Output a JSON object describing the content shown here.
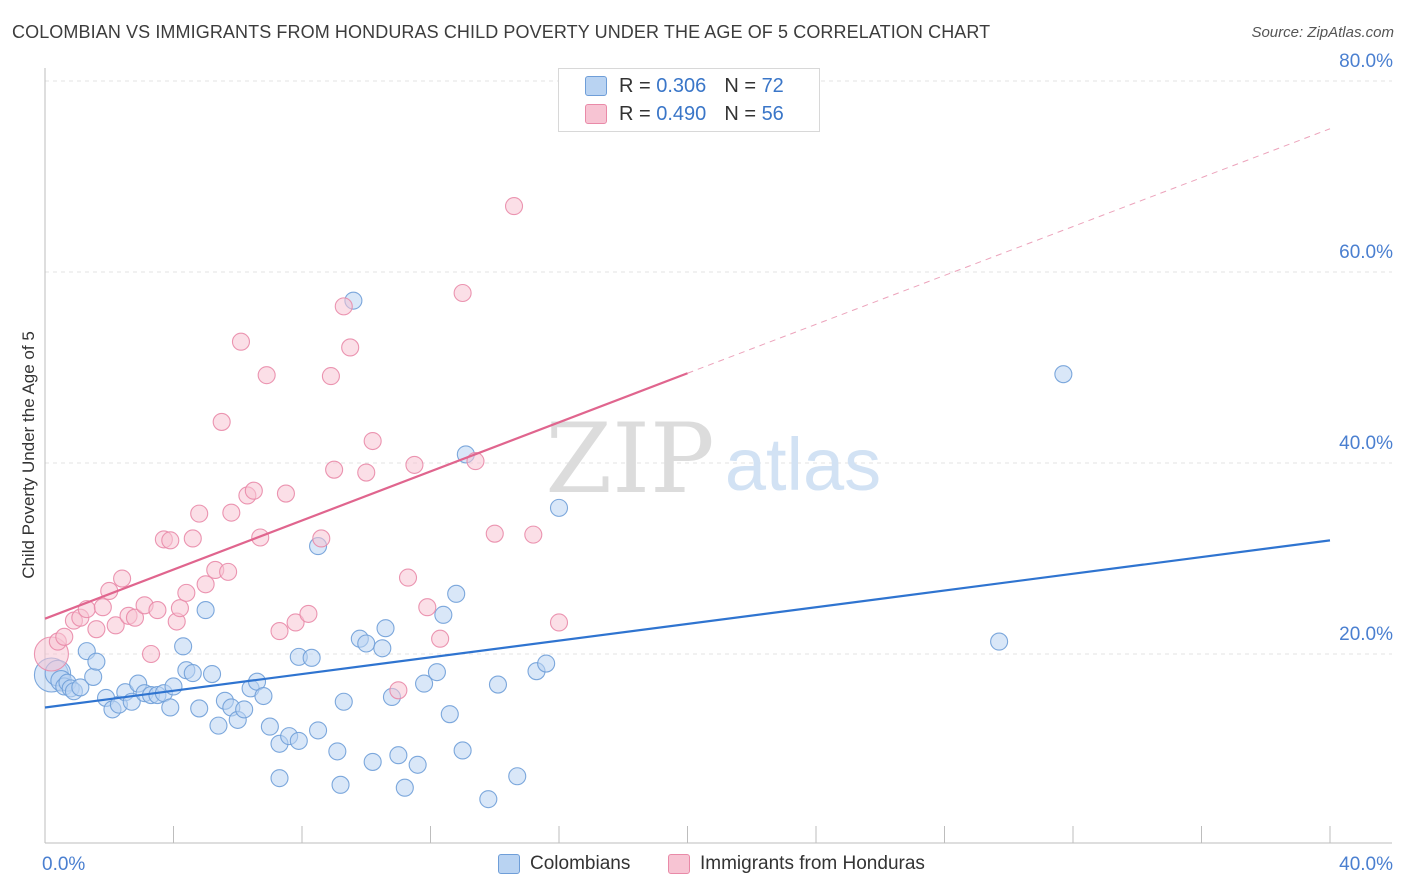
{
  "header": {
    "title": "COLOMBIAN VS IMMIGRANTS FROM HONDURAS CHILD POVERTY UNDER THE AGE OF 5 CORRELATION CHART",
    "source": "Source: ZipAtlas.com"
  },
  "watermark": {
    "zip": "ZIP",
    "atlas": "atlas"
  },
  "legend": {
    "r_label": "R =",
    "n_label": "N =",
    "series": [
      {
        "r": "0.306",
        "n": "72"
      },
      {
        "r": "0.490",
        "n": "56"
      }
    ]
  },
  "colors": {
    "colombians_fill": "#b9d3f2",
    "colombians_stroke": "#6f9ed8",
    "colombians_line": "#2f74d0",
    "honduras_fill": "#f7c4d3",
    "honduras_stroke": "#e98aa8",
    "honduras_line": "#e0658e",
    "axis_text": "#4a7fd0",
    "grid": "#e3e3e3"
  },
  "chart_data": {
    "type": "scatter",
    "title": "COLOMBIAN VS IMMIGRANTS FROM HONDURAS CHILD POVERTY UNDER THE AGE OF 5 CORRELATION CHART",
    "xlabel": "",
    "ylabel": "Child Poverty Under the Age of 5",
    "xlim": [
      0,
      40
    ],
    "ylim": [
      0,
      82
    ],
    "x_tick_labels": [
      {
        "value": 0,
        "label": "0.0%"
      },
      {
        "value": 40,
        "label": "40.0%"
      }
    ],
    "y_tick_labels": [
      {
        "value": 20,
        "label": "20.0%"
      },
      {
        "value": 40,
        "label": "40.0%"
      },
      {
        "value": 60,
        "label": "60.0%"
      },
      {
        "value": 80,
        "label": "80.0%"
      }
    ],
    "x_minor_ticks": [
      4,
      8,
      12,
      16,
      20,
      24,
      28,
      32,
      36,
      40
    ],
    "grid": true,
    "legend_position": "top-center",
    "series": [
      {
        "name": "Colombians",
        "r": 0.306,
        "n": 72,
        "trend": {
          "x0": 0,
          "y0": 14.4,
          "x1": 40,
          "y1": 31.9,
          "dashed_to": null
        },
        "points": [
          [
            0.2,
            17.8,
            2
          ],
          [
            0.4,
            18.0,
            1.5
          ],
          [
            0.5,
            17.2,
            1.2
          ],
          [
            0.6,
            16.6,
            1
          ],
          [
            0.7,
            17.0,
            1
          ],
          [
            0.8,
            16.4,
            1
          ],
          [
            0.9,
            16.1,
            1
          ],
          [
            1.1,
            16.5,
            1
          ],
          [
            1.3,
            20.3,
            1
          ],
          [
            1.5,
            17.6,
            1
          ],
          [
            1.6,
            19.2,
            1
          ],
          [
            1.9,
            15.4,
            1
          ],
          [
            2.1,
            14.2,
            1
          ],
          [
            2.3,
            14.7,
            1
          ],
          [
            2.5,
            16.0,
            1
          ],
          [
            2.7,
            15.0,
            1
          ],
          [
            2.9,
            16.9,
            1
          ],
          [
            3.1,
            15.9,
            1
          ],
          [
            3.3,
            15.7,
            1
          ],
          [
            3.5,
            15.7,
            1
          ],
          [
            3.7,
            15.9,
            1
          ],
          [
            3.9,
            14.4,
            1
          ],
          [
            4.0,
            16.6,
            1
          ],
          [
            4.3,
            20.8,
            1
          ],
          [
            4.4,
            18.3,
            1
          ],
          [
            4.6,
            18.0,
            1
          ],
          [
            4.8,
            14.3,
            1
          ],
          [
            5.0,
            24.6,
            1
          ],
          [
            5.2,
            17.9,
            1
          ],
          [
            5.4,
            12.5,
            1
          ],
          [
            5.6,
            15.1,
            1
          ],
          [
            5.8,
            14.4,
            1
          ],
          [
            6.0,
            13.1,
            1
          ],
          [
            6.2,
            14.2,
            1
          ],
          [
            6.4,
            16.4,
            1
          ],
          [
            6.6,
            17.1,
            1
          ],
          [
            6.8,
            15.6,
            1
          ],
          [
            7.0,
            12.4,
            1
          ],
          [
            7.3,
            10.6,
            1
          ],
          [
            7.6,
            11.4,
            1
          ],
          [
            7.9,
            10.9,
            1
          ],
          [
            7.3,
            7.0,
            1
          ],
          [
            7.9,
            19.7,
            1
          ],
          [
            8.3,
            19.6,
            1
          ],
          [
            8.5,
            12.0,
            1
          ],
          [
            8.5,
            31.3,
            1
          ],
          [
            9.1,
            9.8,
            1
          ],
          [
            9.2,
            6.3,
            1
          ],
          [
            9.3,
            15.0,
            1
          ],
          [
            9.6,
            57.0,
            1
          ],
          [
            9.8,
            21.6,
            1
          ],
          [
            10.0,
            21.1,
            1
          ],
          [
            10.2,
            8.7,
            1
          ],
          [
            10.5,
            20.6,
            1
          ],
          [
            10.6,
            22.7,
            1
          ],
          [
            10.8,
            15.5,
            1
          ],
          [
            11.0,
            9.4,
            1
          ],
          [
            11.2,
            6.0,
            1
          ],
          [
            11.6,
            8.4,
            1
          ],
          [
            11.8,
            16.9,
            1
          ],
          [
            12.2,
            18.1,
            1
          ],
          [
            12.4,
            24.1,
            1
          ],
          [
            12.6,
            13.7,
            1
          ],
          [
            12.8,
            26.3,
            1
          ],
          [
            13.0,
            9.9,
            1
          ],
          [
            13.1,
            40.9,
            1
          ],
          [
            13.8,
            4.8,
            1
          ],
          [
            14.1,
            16.8,
            1
          ],
          [
            14.7,
            7.2,
            1
          ],
          [
            15.3,
            18.2,
            1
          ],
          [
            15.6,
            19.0,
            1
          ],
          [
            16.0,
            35.3,
            1
          ],
          [
            29.7,
            21.3,
            1
          ],
          [
            31.7,
            49.3,
            1
          ]
        ]
      },
      {
        "name": "Immigrants from Honduras",
        "r": 0.49,
        "n": 56,
        "trend": {
          "x0": 0,
          "y0": 23.7,
          "x1": 20,
          "y1": 49.4,
          "dashed_to": {
            "x": 40,
            "y": 75.0
          }
        },
        "points": [
          [
            0.2,
            20.0,
            2
          ],
          [
            0.4,
            21.3,
            1
          ],
          [
            0.6,
            21.8,
            1
          ],
          [
            0.9,
            23.5,
            1
          ],
          [
            1.1,
            23.8,
            1
          ],
          [
            1.3,
            24.7,
            1
          ],
          [
            1.6,
            22.6,
            1
          ],
          [
            1.8,
            24.9,
            1
          ],
          [
            2.0,
            26.6,
            1
          ],
          [
            2.2,
            23.0,
            1
          ],
          [
            2.4,
            27.9,
            1
          ],
          [
            2.6,
            24.0,
            1
          ],
          [
            2.8,
            23.8,
            1
          ],
          [
            3.1,
            25.1,
            1
          ],
          [
            3.3,
            20.0,
            1
          ],
          [
            3.5,
            24.6,
            1
          ],
          [
            3.7,
            32.0,
            1
          ],
          [
            3.9,
            31.9,
            1
          ],
          [
            4.1,
            23.4,
            1
          ],
          [
            4.2,
            24.8,
            1
          ],
          [
            4.4,
            26.4,
            1
          ],
          [
            4.6,
            32.1,
            1
          ],
          [
            4.8,
            34.7,
            1
          ],
          [
            5.0,
            27.3,
            1
          ],
          [
            5.3,
            28.8,
            1
          ],
          [
            5.5,
            44.3,
            1
          ],
          [
            5.7,
            28.6,
            1
          ],
          [
            5.8,
            34.8,
            1
          ],
          [
            6.1,
            52.7,
            1
          ],
          [
            6.3,
            36.6,
            1
          ],
          [
            6.5,
            37.1,
            1
          ],
          [
            6.7,
            32.2,
            1
          ],
          [
            6.9,
            49.2,
            1
          ],
          [
            7.3,
            22.4,
            1
          ],
          [
            7.5,
            36.8,
            1
          ],
          [
            7.8,
            23.3,
            1
          ],
          [
            8.2,
            24.2,
            1
          ],
          [
            8.6,
            32.1,
            1
          ],
          [
            8.9,
            49.1,
            1
          ],
          [
            9.0,
            39.3,
            1
          ],
          [
            9.3,
            56.4,
            1
          ],
          [
            9.5,
            52.1,
            1
          ],
          [
            10.0,
            39.0,
            1
          ],
          [
            10.2,
            42.3,
            1
          ],
          [
            11.0,
            16.2,
            1
          ],
          [
            11.3,
            28.0,
            1
          ],
          [
            11.5,
            39.8,
            1
          ],
          [
            11.9,
            24.9,
            1
          ],
          [
            12.3,
            21.6,
            1
          ],
          [
            13.0,
            57.8,
            1
          ],
          [
            13.4,
            40.2,
            1
          ],
          [
            14.0,
            32.6,
            1
          ],
          [
            14.6,
            66.9,
            1
          ],
          [
            15.2,
            32.5,
            1
          ],
          [
            16.0,
            23.3,
            1
          ]
        ]
      }
    ]
  },
  "bottom_legend": [
    {
      "label": "Colombians"
    },
    {
      "label": "Immigrants from Honduras"
    }
  ]
}
